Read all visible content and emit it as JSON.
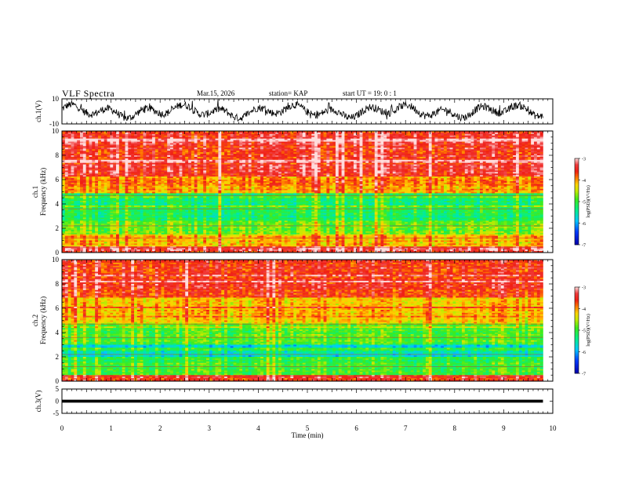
{
  "header": {
    "title": "VLF Spectra",
    "date": "Mar.15, 2026",
    "station": "station= KAP",
    "start": "start  UT  =   19: 0  : 1"
  },
  "chart_data": [
    {
      "type": "line",
      "name_label": "ch.1(V)",
      "ylim": [
        -10,
        10
      ],
      "yticks": [
        "10",
        "-10"
      ],
      "description_values": "waveform oscillating roughly between -6 and 6 V over 0-9.8 min"
    },
    {
      "type": "heatmap",
      "ylabel": "ch.1\nFrequency (kHz)",
      "ylabel_line1": "ch.1",
      "ylabel_line2": "Frequency (kHz)",
      "ylim": [
        0,
        10
      ],
      "yticks": [
        "0",
        "2",
        "4",
        "6",
        "8",
        "10"
      ],
      "colorbar": {
        "label": "log(PSD)(V²/Hz)",
        "ticks": [
          "-3",
          "-4",
          "-5",
          "-6",
          "-7"
        ],
        "range": [
          -7,
          -3
        ]
      },
      "bands": [
        {
          "from": 0,
          "to": 0.5,
          "level": -3.4
        },
        {
          "from": 0.5,
          "to": 1.4,
          "level": -4.1
        },
        {
          "from": 1.4,
          "to": 2.6,
          "level": -4.8
        },
        {
          "from": 2.6,
          "to": 4.9,
          "level": -5.2
        },
        {
          "from": 4.9,
          "to": 6.2,
          "level": -4.0
        },
        {
          "from": 6.2,
          "to": 10,
          "level": -3.5
        }
      ]
    },
    {
      "type": "heatmap",
      "ylabel_line1": "ch.2",
      "ylabel_line2": "Frequency (kHz)",
      "ylim": [
        0,
        10
      ],
      "yticks": [
        "0",
        "2",
        "4",
        "6",
        "8",
        "10"
      ],
      "colorbar": {
        "label": "log(PSD)(V²/Hz)",
        "ticks": [
          "-3",
          "-4",
          "-5",
          "-6",
          "-7"
        ],
        "range": [
          -7,
          -3
        ]
      },
      "bands": [
        {
          "from": 0,
          "to": 0.5,
          "level": -3.5
        },
        {
          "from": 0.5,
          "to": 2.0,
          "level": -5.0
        },
        {
          "from": 2.0,
          "to": 3.0,
          "level": -5.6
        },
        {
          "from": 3.0,
          "to": 4.8,
          "level": -4.9
        },
        {
          "from": 4.8,
          "to": 7.0,
          "level": -4.2
        },
        {
          "from": 7.0,
          "to": 10,
          "level": -3.6
        }
      ]
    },
    {
      "type": "line",
      "name_label": "ch.3(V)",
      "ylim": [
        -5,
        5
      ],
      "yticks": [
        "5",
        "0",
        "-5"
      ],
      "value_band": [
        -0.6,
        0.6
      ]
    }
  ],
  "xaxis": {
    "label": "Time (min)",
    "xlim": [
      0,
      10
    ],
    "ticks": [
      "0",
      "1",
      "2",
      "3",
      "4",
      "5",
      "6",
      "7",
      "8",
      "9",
      "10"
    ],
    "data_end": 9.8
  }
}
